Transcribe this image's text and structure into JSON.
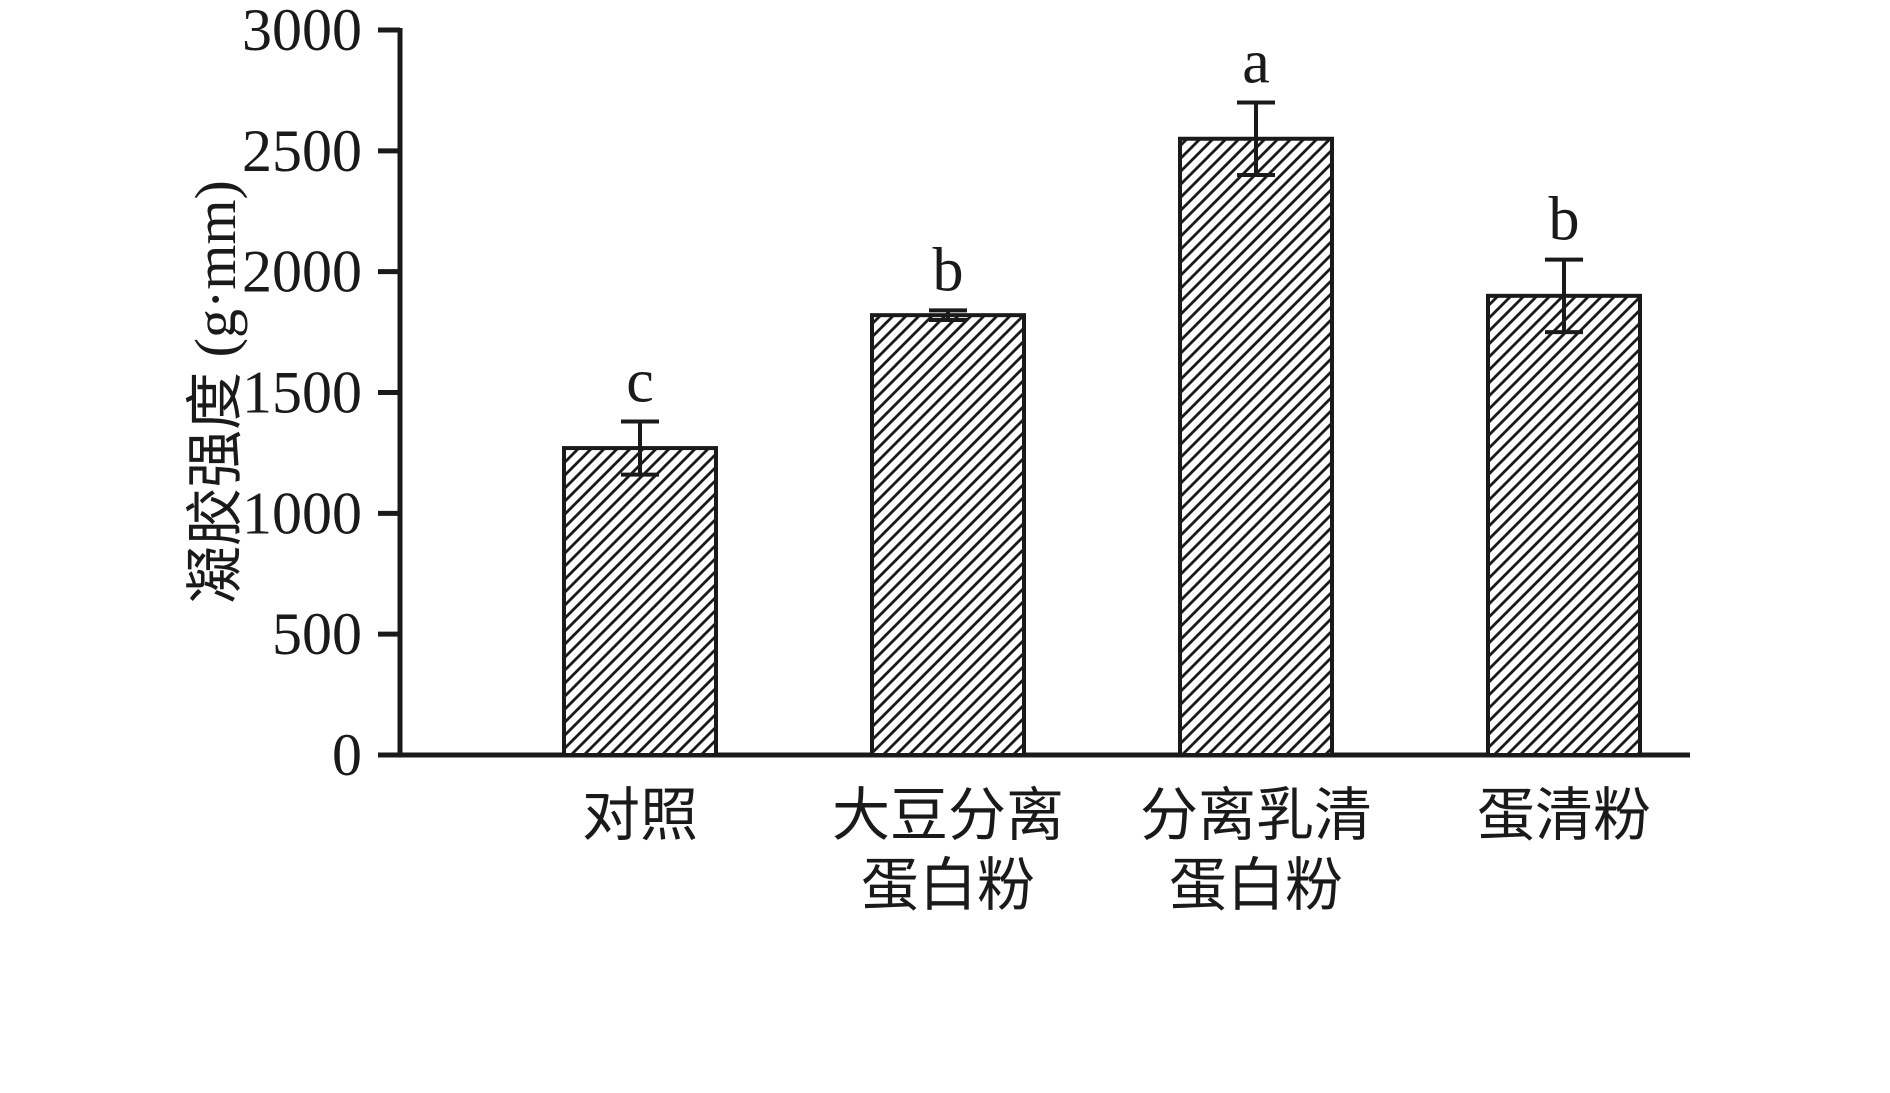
{
  "chart_data": {
    "type": "bar",
    "title": "",
    "xlabel": "",
    "ylabel": "凝胶强度 (g·mm)",
    "categories": [
      "对照",
      "大豆分离\n蛋白粉",
      "分离乳清\n蛋白粉",
      "蛋清粉"
    ],
    "values": [
      1270,
      1820,
      2550,
      1900
    ],
    "errors": [
      110,
      20,
      150,
      150
    ],
    "sig_letters": [
      "c",
      "b",
      "a",
      "b"
    ],
    "ylim": [
      0,
      3000
    ],
    "yticks": [
      0,
      500,
      1000,
      1500,
      2000,
      2500,
      3000
    ],
    "grid": "off",
    "legend": "none",
    "bar_style": "diagonal-hatch",
    "bar_color": "#1a1a1a",
    "bar_fill_background": "#ffffff",
    "axis_color": "#1a1a1a",
    "background": "#ffffff"
  }
}
